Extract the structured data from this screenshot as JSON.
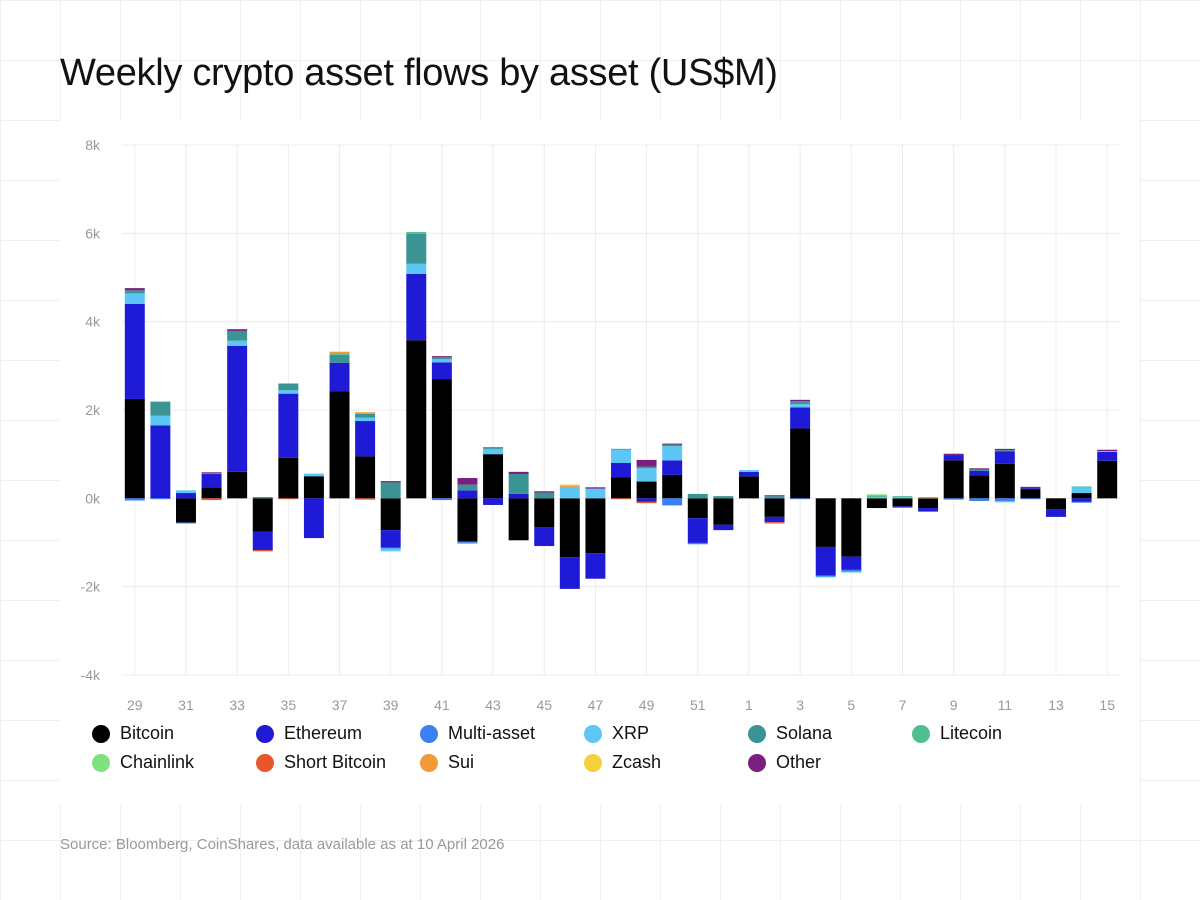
{
  "chart_data": {
    "type": "bar",
    "stacked": true,
    "title": "Weekly crypto asset flows by asset (US$M)",
    "source": "Source: Bloomberg, CoinShares, data available as at 10 April 2026",
    "ylim": [
      -4000,
      8000
    ],
    "yticks": [
      -4000,
      -2000,
      0,
      2000,
      4000,
      6000,
      8000
    ],
    "ytick_labels": [
      "-4k",
      "-2k",
      "0k",
      "2k",
      "4k",
      "6k",
      "8k"
    ],
    "categories": [
      "29",
      "30",
      "31",
      "32",
      "33",
      "34",
      "35",
      "36",
      "37",
      "38",
      "39",
      "40",
      "41",
      "42",
      "43",
      "44",
      "45",
      "46",
      "47",
      "48",
      "49",
      "50",
      "51",
      "52",
      "1",
      "2",
      "3",
      "4",
      "5",
      "6",
      "7",
      "8",
      "9",
      "10",
      "11",
      "12",
      "13",
      "14",
      "15"
    ],
    "xtick_labels": [
      "29",
      "31",
      "33",
      "35",
      "37",
      "39",
      "41",
      "43",
      "45",
      "47",
      "49",
      "51",
      "1",
      "3",
      "5",
      "7",
      "9",
      "11",
      "13",
      "15"
    ],
    "legend": [
      {
        "name": "Bitcoin",
        "color": "#000000"
      },
      {
        "name": "Ethereum",
        "color": "#1f1ad6"
      },
      {
        "name": "Multi-asset",
        "color": "#3b82f0"
      },
      {
        "name": "XRP",
        "color": "#5cc7f5"
      },
      {
        "name": "Solana",
        "color": "#3a9494"
      },
      {
        "name": "Litecoin",
        "color": "#4fbf8f"
      },
      {
        "name": "Chainlink",
        "color": "#7ee37e"
      },
      {
        "name": "Short Bitcoin",
        "color": "#e8562a"
      },
      {
        "name": "Sui",
        "color": "#f29a38"
      },
      {
        "name": "Zcash",
        "color": "#f5d13d"
      },
      {
        "name": "Other",
        "color": "#7a1f80"
      }
    ],
    "series": [
      {
        "name": "Bitcoin",
        "values": [
          2250,
          0,
          -550,
          250,
          600,
          -750,
          920,
          500,
          2420,
          950,
          -720,
          3580,
          2700,
          -980,
          1000,
          -950,
          -650,
          -1330,
          -1240,
          480,
          380,
          530,
          -450,
          -600,
          500,
          -420,
          1580,
          -1100,
          -1320,
          -220,
          -180,
          -220,
          860,
          520,
          780,
          200,
          -250,
          120,
          850
        ]
      },
      {
        "name": "Ethereum",
        "values": [
          2150,
          1650,
          120,
          300,
          2850,
          -420,
          1450,
          -900,
          650,
          800,
          -400,
          1500,
          380,
          180,
          -150,
          100,
          -430,
          -720,
          -580,
          320,
          -80,
          330,
          -560,
          -120,
          100,
          -120,
          480,
          -650,
          -300,
          0,
          -30,
          -70,
          120,
          100,
          280,
          30,
          -170,
          -80,
          200
        ]
      },
      {
        "name": "Multi-asset",
        "values": [
          -50,
          -20,
          -20,
          20,
          0,
          0,
          0,
          0,
          0,
          0,
          -20,
          0,
          -40,
          -30,
          0,
          0,
          0,
          0,
          0,
          0,
          0,
          -160,
          -30,
          0,
          0,
          20,
          -20,
          -20,
          -40,
          0,
          0,
          -20,
          -30,
          -60,
          -60,
          -20,
          0,
          -20,
          0
        ]
      },
      {
        "name": "XRP",
        "values": [
          240,
          220,
          60,
          0,
          120,
          0,
          80,
          60,
          0,
          80,
          -60,
          230,
          70,
          -20,
          120,
          0,
          0,
          260,
          220,
          300,
          300,
          320,
          0,
          0,
          40,
          0,
          70,
          -20,
          -20,
          30,
          30,
          0,
          0,
          0,
          -30,
          0,
          0,
          120,
          20
        ]
      },
      {
        "name": "Solana",
        "values": [
          70,
          320,
          0,
          0,
          220,
          30,
          150,
          0,
          180,
          80,
          360,
          680,
          50,
          130,
          40,
          450,
          130,
          0,
          0,
          20,
          40,
          40,
          100,
          50,
          0,
          30,
          70,
          0,
          0,
          0,
          0,
          0,
          0,
          30,
          30,
          0,
          0,
          0,
          0
        ]
      },
      {
        "name": "Litecoin",
        "values": [
          0,
          0,
          0,
          0,
          0,
          0,
          0,
          0,
          30,
          0,
          0,
          40,
          0,
          0,
          0,
          0,
          0,
          0,
          0,
          0,
          0,
          0,
          0,
          0,
          0,
          0,
          0,
          0,
          0,
          40,
          20,
          0,
          0,
          0,
          0,
          0,
          0,
          30,
          0
        ]
      },
      {
        "name": "Chainlink",
        "values": [
          0,
          0,
          0,
          0,
          0,
          0,
          0,
          0,
          0,
          0,
          0,
          0,
          0,
          0,
          0,
          0,
          0,
          0,
          0,
          0,
          0,
          0,
          0,
          0,
          0,
          0,
          0,
          0,
          0,
          20,
          0,
          0,
          0,
          0,
          0,
          0,
          0,
          0,
          0
        ]
      },
      {
        "name": "Short Bitcoin",
        "values": [
          0,
          0,
          0,
          -40,
          0,
          -30,
          -20,
          0,
          0,
          -30,
          0,
          0,
          0,
          0,
          0,
          0,
          0,
          0,
          0,
          -20,
          -30,
          0,
          0,
          0,
          0,
          -30,
          0,
          0,
          0,
          0,
          0,
          0,
          0,
          0,
          0,
          0,
          0,
          0,
          0
        ]
      },
      {
        "name": "Sui",
        "values": [
          0,
          0,
          0,
          0,
          0,
          0,
          0,
          0,
          40,
          40,
          0,
          0,
          0,
          0,
          0,
          0,
          0,
          30,
          0,
          0,
          0,
          0,
          0,
          0,
          0,
          0,
          0,
          0,
          0,
          0,
          0,
          30,
          0,
          0,
          0,
          0,
          0,
          0,
          0
        ]
      },
      {
        "name": "Zcash",
        "values": [
          0,
          0,
          0,
          0,
          0,
          0,
          0,
          0,
          0,
          0,
          0,
          0,
          0,
          0,
          0,
          0,
          0,
          20,
          0,
          0,
          0,
          0,
          0,
          0,
          0,
          0,
          0,
          0,
          0,
          0,
          0,
          0,
          0,
          0,
          0,
          0,
          0,
          0,
          0
        ]
      },
      {
        "name": "Other",
        "values": [
          50,
          0,
          0,
          20,
          40,
          0,
          0,
          0,
          0,
          0,
          30,
          0,
          20,
          150,
          0,
          50,
          30,
          0,
          30,
          0,
          150,
          20,
          0,
          0,
          0,
          20,
          30,
          0,
          0,
          0,
          0,
          0,
          30,
          30,
          30,
          30,
          0,
          0,
          30
        ]
      }
    ]
  }
}
